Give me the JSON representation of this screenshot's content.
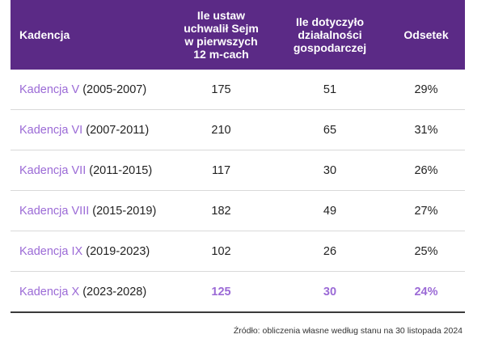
{
  "table": {
    "headers": {
      "kadencja": "Kadencja",
      "ustawy": [
        "Ile ustaw",
        "uchwalił Sejm",
        "w pierwszych",
        "12 m-cach"
      ],
      "dzialalnosc": [
        "Ile dotyczyło",
        "działalności",
        "gospodarczej"
      ],
      "odsetek": "Odsetek"
    },
    "rows": [
      {
        "name": "Kadencja V",
        "years": "(2005-2007)",
        "ustawy": "175",
        "dzialalnosc": "51",
        "odsetek": "29%"
      },
      {
        "name": "Kadencja VI",
        "years": "(2007-2011)",
        "ustawy": "210",
        "dzialalnosc": "65",
        "odsetek": "31%"
      },
      {
        "name": "Kadencja VII",
        "years": "(2011-2015)",
        "ustawy": "117",
        "dzialalnosc": "30",
        "odsetek": "26%"
      },
      {
        "name": "Kadencja VIII",
        "years": "(2015-2019)",
        "ustawy": "182",
        "dzialalnosc": "49",
        "odsetek": "27%"
      },
      {
        "name": "Kadencja IX",
        "years": "(2019-2023)",
        "ustawy": "102",
        "dzialalnosc": "26",
        "odsetek": "25%"
      },
      {
        "name": "Kadencja X",
        "years": "(2023-2028)",
        "ustawy": "125",
        "dzialalnosc": "30",
        "odsetek": "24%"
      }
    ]
  },
  "source": "Źródło: obliczenia własne według stanu na 30 listopada 2024",
  "colors": {
    "header_bg": "#5b2a86",
    "accent": "#9b6ad6"
  }
}
